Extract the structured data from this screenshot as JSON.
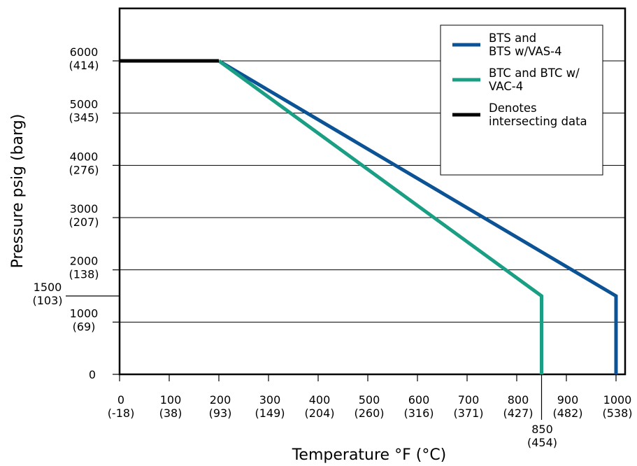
{
  "chart_data": {
    "type": "line",
    "xlabel": "Temperature °F (°C)",
    "ylabel": "Pressure psig (barg)",
    "xlim": [
      0,
      1000
    ],
    "ylim": [
      0,
      6000
    ],
    "grid": "horizontal",
    "legend_position": "top-right",
    "x_ticks": [
      {
        "value": 0,
        "line1": "0",
        "line2": "(-18)"
      },
      {
        "value": 100,
        "line1": "100",
        "line2": "(38)"
      },
      {
        "value": 200,
        "line1": "200",
        "line2": "(93)"
      },
      {
        "value": 300,
        "line1": "300",
        "line2": "(149)"
      },
      {
        "value": 400,
        "line1": "400",
        "line2": "(204)"
      },
      {
        "value": 500,
        "line1": "500",
        "line2": "(260)"
      },
      {
        "value": 600,
        "line1": "600",
        "line2": "(316)"
      },
      {
        "value": 700,
        "line1": "700",
        "line2": "(371)"
      },
      {
        "value": 800,
        "line1": "800",
        "line2": "(427)"
      },
      {
        "value": 900,
        "line1": "900",
        "line2": "(482)"
      },
      {
        "value": 1000,
        "line1": "1000",
        "line2": "(538)"
      }
    ],
    "x_extra_tick": {
      "value": 850,
      "line1": "850",
      "line2": "(454)"
    },
    "y_ticks": [
      {
        "value": 0,
        "line1": "0",
        "line2": ""
      },
      {
        "value": 1000,
        "line1": "1000",
        "line2": "(69)"
      },
      {
        "value": 2000,
        "line1": "2000",
        "line2": "(138)"
      },
      {
        "value": 3000,
        "line1": "3000",
        "line2": "(207)"
      },
      {
        "value": 4000,
        "line1": "4000",
        "line2": "(276)"
      },
      {
        "value": 5000,
        "line1": "5000",
        "line2": "(345)"
      },
      {
        "value": 6000,
        "line1": "6000",
        "line2": "(414)"
      }
    ],
    "y_extra_tick": {
      "value": 1500,
      "line1": "1500",
      "line2": "(103)"
    },
    "series": [
      {
        "name": "BTS and BTS w/VAS-4",
        "legend_lines": [
          "BTS and",
          "BTS w/VAS-4"
        ],
        "color": "#0b5394",
        "points": [
          [
            200,
            6000
          ],
          [
            1000,
            1500
          ],
          [
            1000,
            0
          ]
        ]
      },
      {
        "name": "BTC and BTC w/ VAC-4",
        "legend_lines": [
          "BTC and BTC w/",
          "VAC-4"
        ],
        "color": "#1a9e84",
        "points": [
          [
            200,
            6000
          ],
          [
            850,
            1500
          ],
          [
            850,
            0
          ]
        ]
      },
      {
        "name": "Denotes intersecting data",
        "legend_lines": [
          "Denotes",
          "intersecting data"
        ],
        "color": "#000000",
        "points": [
          [
            0,
            6000
          ],
          [
            200,
            6000
          ]
        ]
      }
    ]
  }
}
